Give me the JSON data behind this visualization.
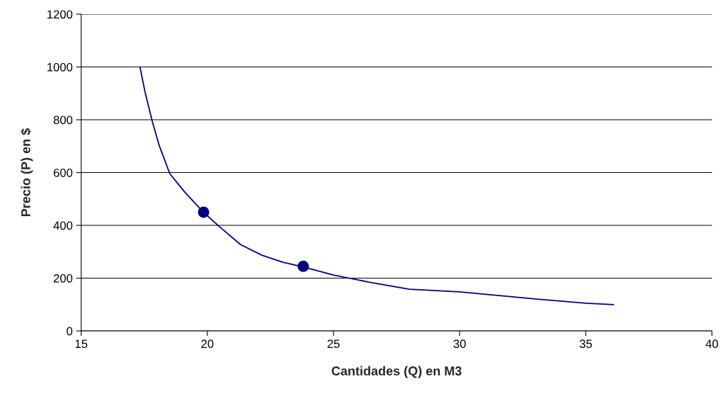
{
  "chart_data": {
    "type": "line",
    "xlabel": "Cantidades (Q) en M3",
    "ylabel": "Precio (P) en $",
    "xlim": [
      15,
      40
    ],
    "xticks": [
      15,
      20,
      25,
      30,
      35,
      40
    ],
    "ylim": [
      0,
      1200
    ],
    "yticks": [
      0,
      200,
      400,
      600,
      800,
      1000,
      1200
    ],
    "grid": "y",
    "marker": "none",
    "series": [
      {
        "color": "#000080",
        "x": [
          17.33,
          17.53,
          17.81,
          18.09,
          18.51,
          19.07,
          19.83,
          20.48,
          21.32,
          22.16,
          23.0,
          23.82,
          25.0,
          26.4,
          28.0,
          30.0,
          33.0,
          35.0,
          36.1
        ],
        "values": [
          1000,
          905,
          797,
          703,
          596,
          530,
          451,
          395,
          327,
          287,
          260,
          242,
          212,
          185,
          158,
          148,
          121,
          105,
          100
        ]
      },
      {
        "type": "scatter",
        "color": "#000080",
        "marker": "circle",
        "x": [
          19.85,
          23.8
        ],
        "values": [
          450,
          245
        ]
      }
    ]
  }
}
